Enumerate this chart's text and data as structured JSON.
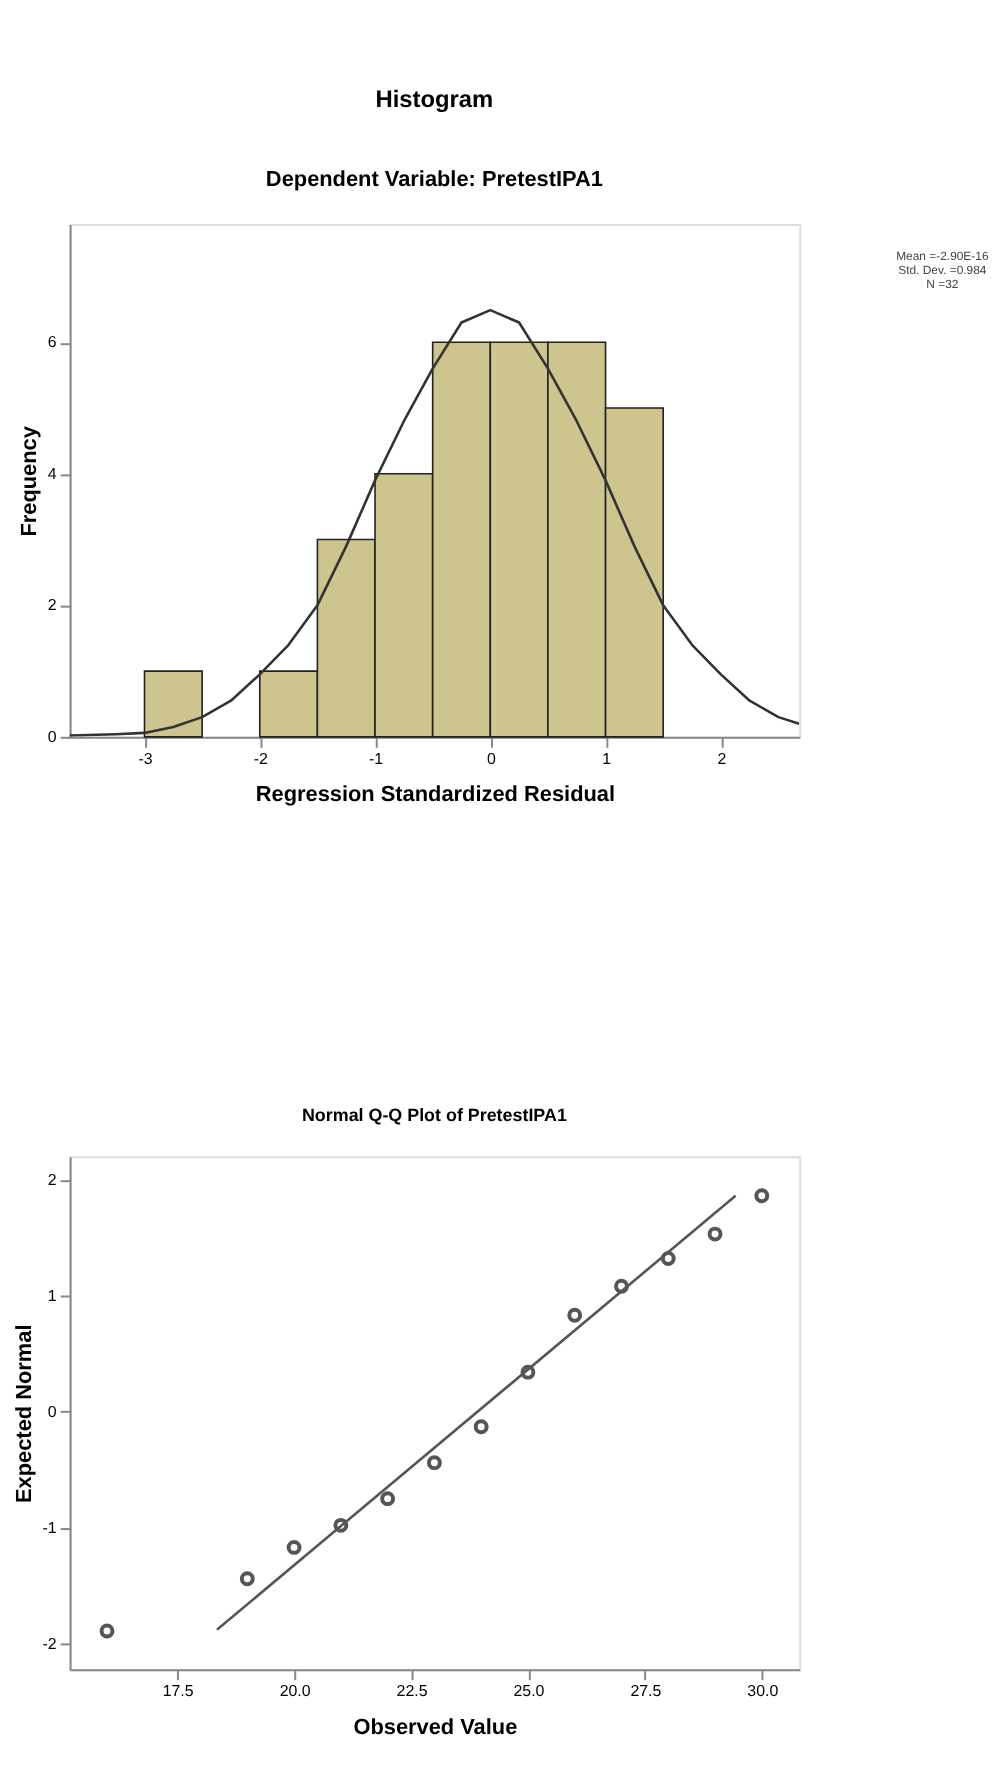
{
  "chart_data": [
    {
      "type": "histogram",
      "title": "Histogram",
      "subtitle": "Dependent Variable: PretestIPA1",
      "xlabel": "Regression Standardized Residual",
      "ylabel": "Frequency",
      "bins": [
        -3,
        -2.5,
        -2,
        -1.5,
        -1,
        -0.5,
        0,
        0.5,
        1,
        1.5
      ],
      "values": [
        1,
        0,
        1,
        3,
        4,
        6,
        6,
        6,
        5
      ],
      "color": "#cdc48e",
      "series": [
        {
          "type": "line",
          "color": "#333333",
          "x": [
            -3.65,
            -3.25,
            -3,
            -2.75,
            -2.5,
            -2.25,
            -2,
            -1.75,
            -1.5,
            -1.25,
            -1,
            -0.75,
            -0.5,
            -0.25,
            0,
            0.25,
            0.5,
            0.75,
            1,
            1.25,
            1.5,
            1.75,
            2,
            2.25,
            2.5,
            2.68
          ],
          "values": [
            0.02,
            0.04,
            0.06,
            0.15,
            0.3,
            0.55,
            0.95,
            1.4,
            2.0,
            2.9,
            3.9,
            4.8,
            5.6,
            6.3,
            6.49,
            6.3,
            5.6,
            4.8,
            3.9,
            2.9,
            2.0,
            1.4,
            0.95,
            0.55,
            0.3,
            0.2
          ]
        }
      ],
      "xlim": [
        -3.65,
        2.68
      ],
      "ylim": [
        0,
        7.8
      ],
      "xticks": [
        -3,
        -2,
        -1,
        0,
        1,
        2
      ],
      "yticks": [
        0,
        2,
        4,
        6
      ],
      "grid": false,
      "annotations": [
        "Mean =-2.90E-16",
        "Std. Dev. =0.984",
        "N =32"
      ]
    },
    {
      "type": "scatter",
      "title": "Normal Q-Q Plot of PretestIPA1",
      "xlabel": "Observed Value",
      "ylabel": "Expected Normal",
      "series": [
        {
          "type": "scatter",
          "marker": "circle",
          "color": "#555555",
          "x": [
            16.0,
            19.0,
            20.0,
            21.0,
            22.0,
            23.0,
            24.0,
            25.0,
            26.0,
            27.0,
            28.0,
            29.0,
            30.0
          ],
          "values": [
            -1.89,
            -1.44,
            -1.17,
            -0.98,
            -0.75,
            -0.44,
            -0.13,
            0.34,
            0.83,
            1.08,
            1.32,
            1.53,
            1.86
          ]
        },
        {
          "type": "line",
          "color": "#555555",
          "x": [
            18.35,
            29.44
          ],
          "values": [
            -1.88,
            1.86
          ]
        }
      ],
      "xlim": [
        15.2,
        30.8
      ],
      "ylim": [
        -2.22,
        2.2
      ],
      "xticks": [
        17.5,
        {
          "value": 20,
          "label": "20.0"
        },
        22.5,
        {
          "value": 25,
          "label": "25.0"
        },
        27.5,
        {
          "value": 30,
          "label": "30.0"
        }
      ],
      "yticks": [
        -2,
        -1,
        0,
        1,
        2
      ],
      "grid": false
    }
  ]
}
